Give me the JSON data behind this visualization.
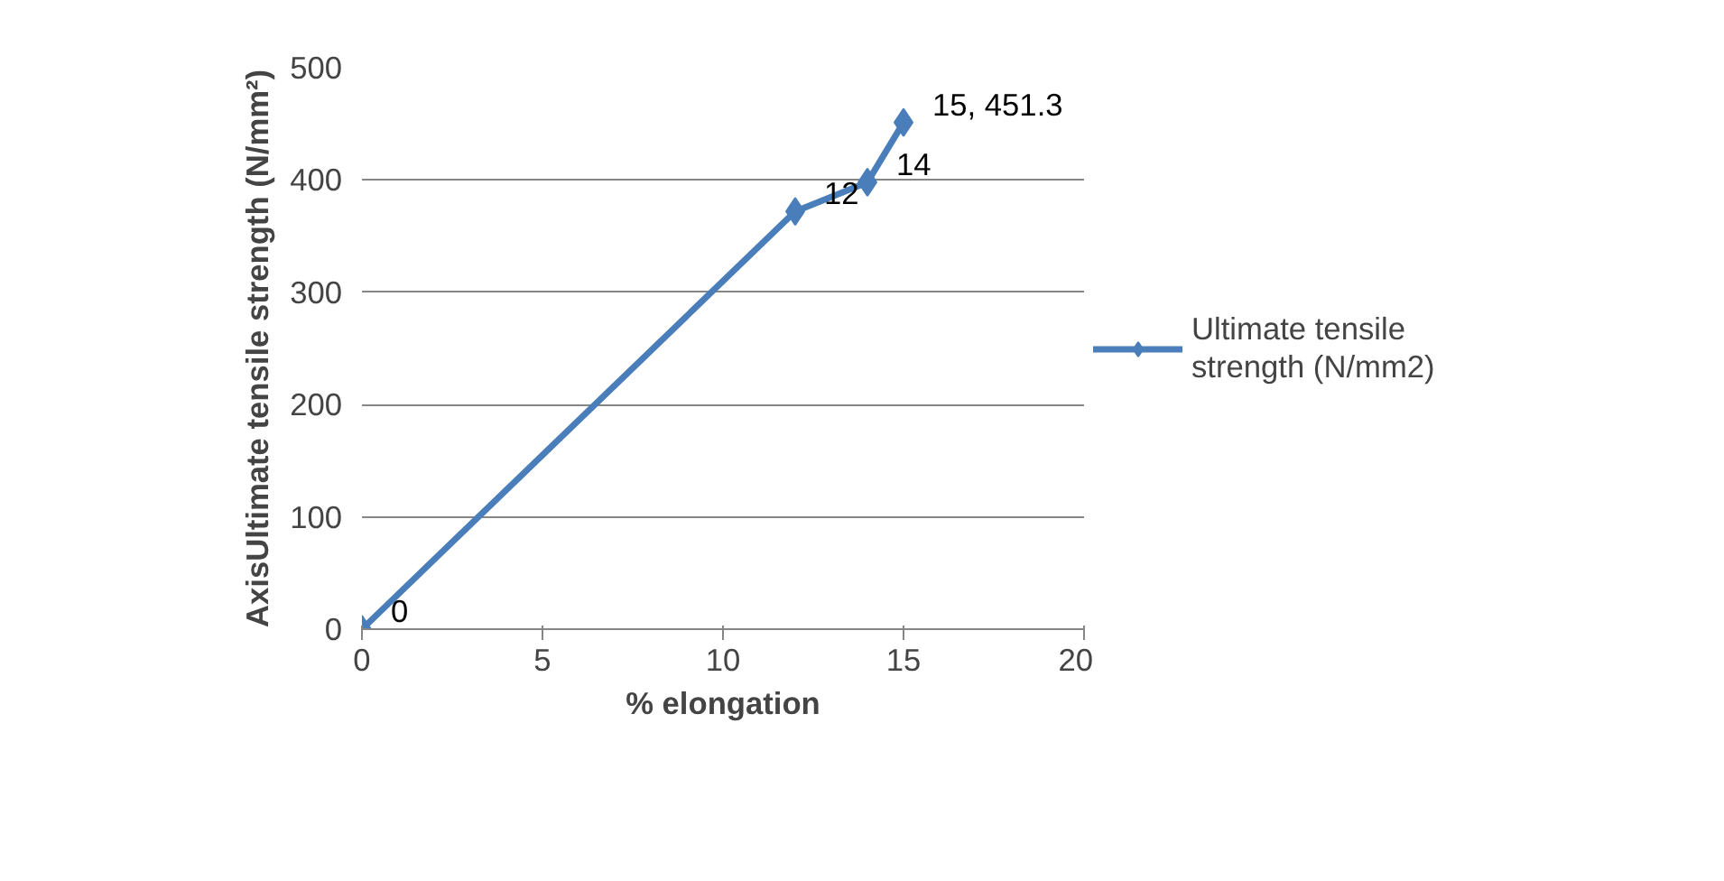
{
  "chart_data": {
    "type": "line",
    "xlabel": "% elongation",
    "ylabel": "AxisUltimate tensile strength (N/mm²)",
    "x": [
      0,
      12,
      14,
      15
    ],
    "series": [
      {
        "name": "Ultimate tensile strength (N/mm2)",
        "color": "#4a7ebb",
        "values": [
          0,
          372,
          398,
          451.3
        ]
      }
    ],
    "annotations": [
      {
        "text": "0",
        "x": 0,
        "y": 0
      },
      {
        "text": "12",
        "x": 12,
        "y": 372
      },
      {
        "text": "14",
        "x": 14,
        "y": 398
      },
      {
        "text": "15, 451.3",
        "x": 15,
        "y": 451.3
      }
    ],
    "xlim": [
      0,
      20
    ],
    "xticks": [
      0,
      5,
      10,
      15,
      20
    ],
    "ylim": [
      0,
      500
    ],
    "yticks": [
      0,
      100,
      200,
      300,
      400,
      500
    ],
    "grid": "y",
    "legend": "right",
    "marker": "diamond",
    "line_style": "solid"
  }
}
